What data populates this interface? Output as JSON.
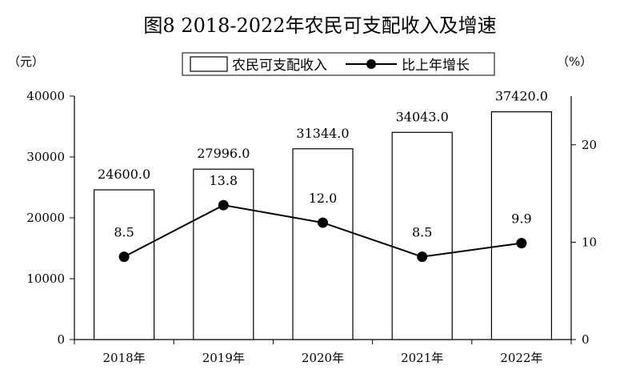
{
  "chart_data": {
    "type": "bar",
    "title": "图8  2018-2022年农民可支配收入及增速",
    "y_left_unit": "（元）",
    "y_right_unit": "（%）",
    "categories": [
      "2018年",
      "2019年",
      "2020年",
      "2021年",
      "2022年"
    ],
    "series": [
      {
        "name": "农民可支配收入",
        "kind": "bar",
        "axis": "left",
        "values": [
          24600.0,
          27996.0,
          31344.0,
          34043.0,
          37420.0
        ],
        "labels": [
          "24600.0",
          "27996.0",
          "31344.0",
          "34043.0",
          "37420.0"
        ]
      },
      {
        "name": "比上年增长",
        "kind": "line",
        "axis": "right",
        "values": [
          8.5,
          13.8,
          12.0,
          8.5,
          9.9
        ],
        "labels": [
          "8.5",
          "13.8",
          "12.0",
          "8.5",
          "9.9"
        ]
      }
    ],
    "y_left": {
      "range": [
        0,
        40000
      ],
      "ticks": [
        "0",
        "10000",
        "20000",
        "30000",
        "40000"
      ]
    },
    "y_right": {
      "range": [
        0,
        25
      ],
      "ticks": [
        "0",
        "10",
        "20"
      ]
    },
    "grid": false,
    "legend_position": "top-center",
    "colors": {
      "bar_fill": "#ffffff",
      "bar_stroke": "#000000",
      "line": "#000000"
    }
  }
}
